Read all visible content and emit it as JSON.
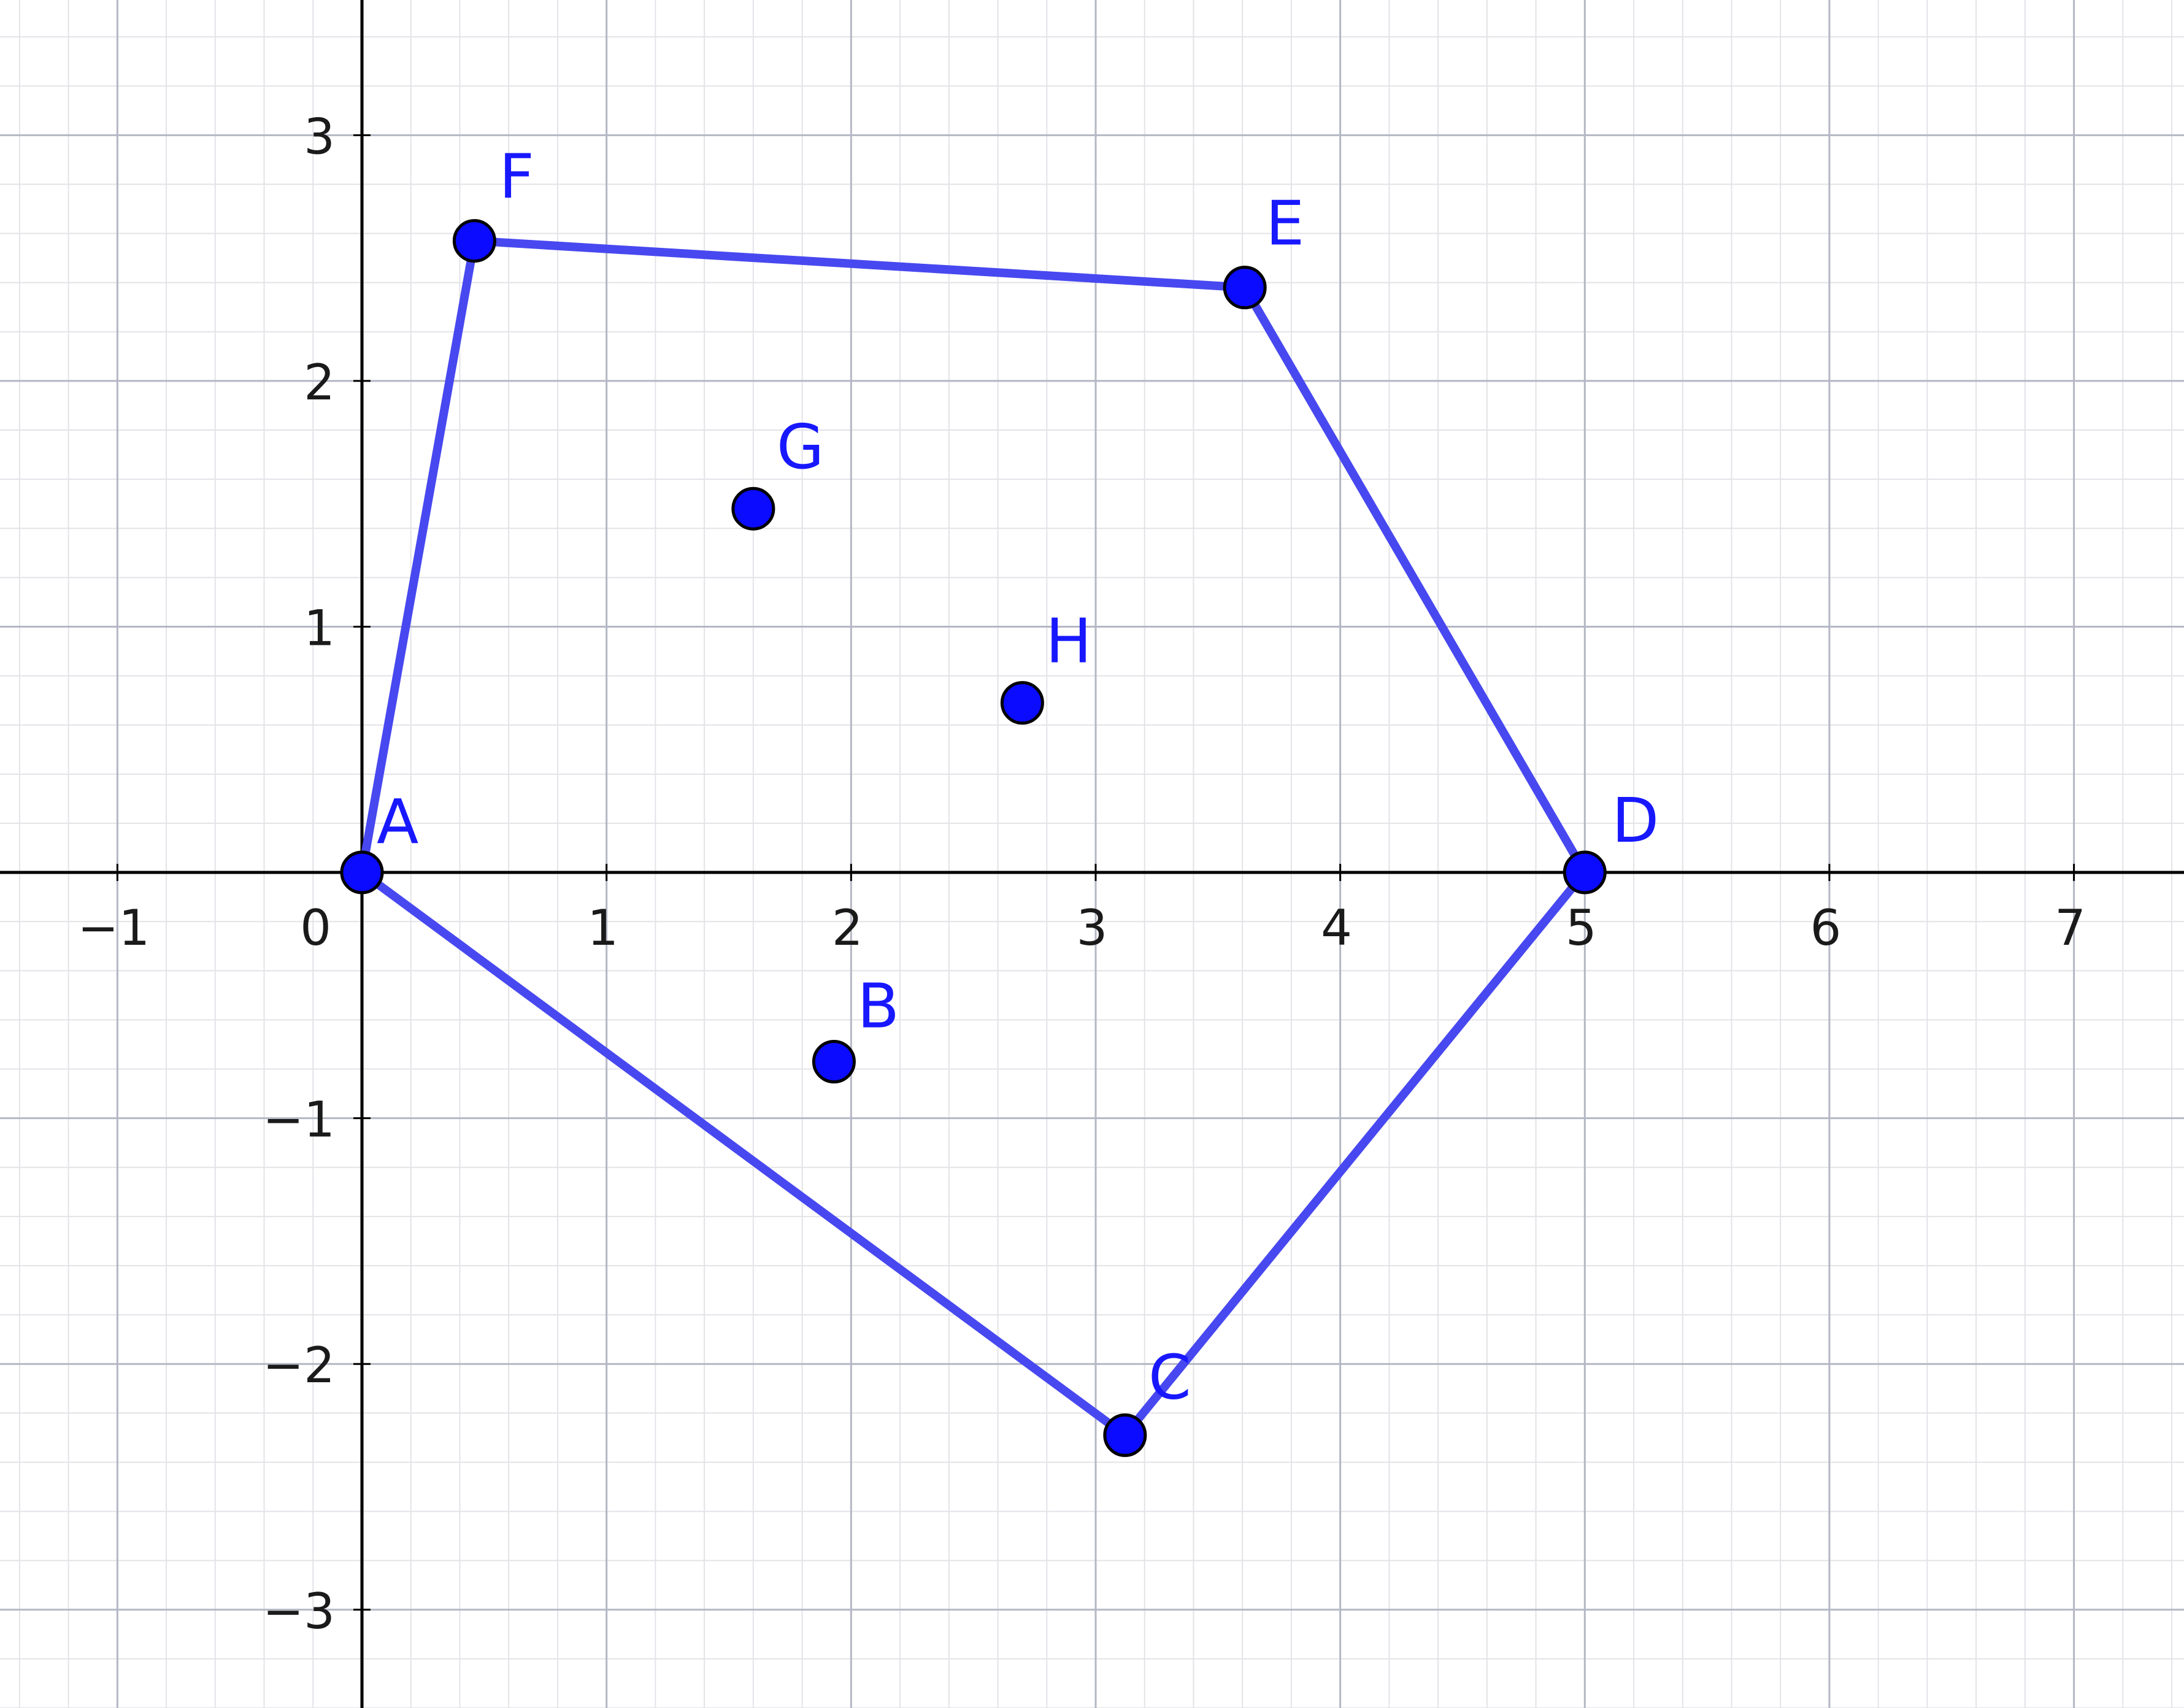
{
  "colors": {
    "polygon": "#4848f0",
    "point_fill": "#0b0bff",
    "label": "#1818ff"
  },
  "axes": {
    "x_ticks": [
      "−1",
      "1",
      "2",
      "3",
      "4",
      "5",
      "6",
      "7"
    ],
    "y_ticks": [
      "3",
      "2",
      "1",
      "−1",
      "−2",
      "−3"
    ],
    "origin_label": "0",
    "x_range": [
      -1.48,
      7.45
    ],
    "y_range": [
      -3.4,
      3.55
    ]
  },
  "points": [
    {
      "label": "A",
      "x": 0,
      "y": 0
    },
    {
      "label": "B",
      "x": 1.93,
      "y": -0.77
    },
    {
      "label": "C",
      "x": 3.12,
      "y": -2.29
    },
    {
      "label": "D",
      "x": 5,
      "y": 0
    },
    {
      "label": "E",
      "x": 3.61,
      "y": 2.38
    },
    {
      "label": "F",
      "x": 0.46,
      "y": 2.57
    },
    {
      "label": "G",
      "x": 1.6,
      "y": 1.48
    },
    {
      "label": "H",
      "x": 2.7,
      "y": 0.69
    }
  ],
  "polygon": [
    "A",
    "F",
    "E",
    "D",
    "C",
    "A"
  ]
}
